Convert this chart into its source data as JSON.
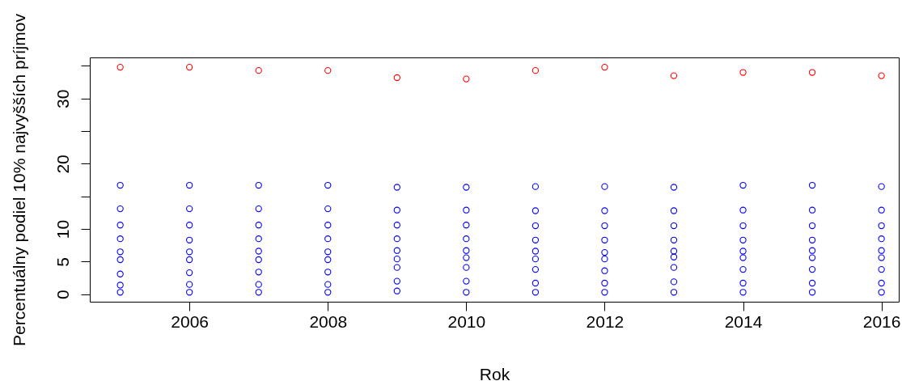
{
  "chart_data": {
    "type": "scatter",
    "xlabel": "Rok",
    "ylabel": "Percentuálny podiel 10% najvyšších príjmov",
    "x": [
      2005,
      2006,
      2007,
      2008,
      2009,
      2010,
      2011,
      2012,
      2013,
      2014,
      2015,
      2016
    ],
    "xlim": [
      2004.56,
      2016.25
    ],
    "xticks": [
      2006,
      2008,
      2010,
      2012,
      2014,
      2016
    ],
    "ylim": [
      -1.15,
      36.3
    ],
    "yticks": [
      0,
      5,
      10,
      {
        "value": 15,
        "label": null
      },
      20,
      {
        "value": 25,
        "label": null
      },
      30,
      {
        "value": 35,
        "label": null
      }
    ],
    "marker": "circle",
    "series": [
      {
        "color": "#0000ff",
        "values": [
          0.3,
          0.3,
          0.3,
          0.3,
          0.5,
          0.3,
          0.3,
          0.3,
          0.3,
          0.3,
          0.3,
          0.3
        ]
      },
      {
        "color": "#0000ff",
        "values": [
          1.4,
          1.5,
          1.5,
          1.5,
          2.0,
          2.0,
          1.7,
          1.7,
          1.9,
          1.7,
          1.7,
          1.7
        ]
      },
      {
        "color": "#0000ff",
        "values": [
          3.1,
          3.3,
          3.4,
          3.4,
          4.1,
          4.1,
          3.8,
          3.6,
          4.1,
          3.8,
          3.8,
          3.8
        ]
      },
      {
        "color": "#0000ff",
        "values": [
          5.3,
          5.3,
          5.3,
          5.3,
          5.4,
          5.6,
          5.4,
          5.4,
          5.7,
          5.6,
          5.6,
          5.6
        ]
      },
      {
        "color": "#0000ff",
        "values": [
          6.5,
          6.5,
          6.6,
          6.5,
          6.7,
          6.7,
          6.6,
          6.4,
          6.6,
          6.6,
          6.7,
          6.7
        ]
      },
      {
        "color": "#0000ff",
        "values": [
          8.5,
          8.3,
          8.5,
          8.5,
          8.5,
          8.5,
          8.3,
          8.3,
          8.3,
          8.3,
          8.3,
          8.5
        ]
      },
      {
        "color": "#0000ff",
        "values": [
          10.6,
          10.6,
          10.6,
          10.6,
          10.6,
          10.6,
          10.5,
          10.5,
          10.5,
          10.5,
          10.5,
          10.5
        ]
      },
      {
        "color": "#0000ff",
        "values": [
          13.1,
          13.1,
          13.1,
          13.1,
          12.9,
          12.9,
          12.8,
          12.8,
          12.8,
          12.9,
          12.9,
          12.9
        ]
      },
      {
        "color": "#0000ff",
        "values": [
          16.7,
          16.7,
          16.7,
          16.7,
          16.4,
          16.4,
          16.5,
          16.5,
          16.4,
          16.7,
          16.7,
          16.5
        ]
      },
      {
        "color": "#ff0000",
        "values": [
          34.8,
          34.8,
          34.3,
          34.3,
          33.2,
          33.0,
          34.3,
          34.8,
          33.5,
          34.0,
          34.0,
          33.5
        ]
      }
    ]
  }
}
